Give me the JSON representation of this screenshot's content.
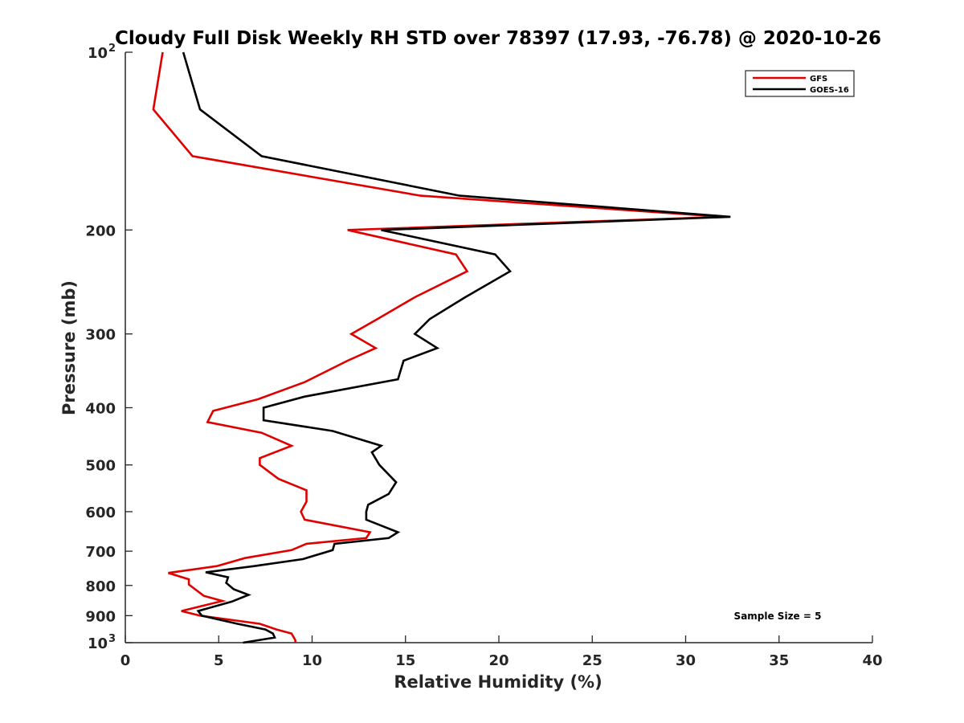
{
  "chart_data": {
    "type": "line",
    "title": "Cloudy Full Disk Weekly RH STD over 78397 (17.93, -76.78) @ 2020-10-26",
    "xlabel": "Relative Humidity (%)",
    "ylabel": "Pressure (mb)",
    "xlim": [
      0,
      40
    ],
    "ylim": [
      100,
      1000
    ],
    "y_scale": "log",
    "y_reversed": true,
    "x_ticks": [
      "0",
      "5",
      "10",
      "15",
      "20",
      "25",
      "30",
      "35",
      "40"
    ],
    "y_ticks": [
      {
        "value": 100,
        "base": "10",
        "exp": "2"
      },
      {
        "value": 200,
        "label": "200"
      },
      {
        "value": 300,
        "label": "300"
      },
      {
        "value": 400,
        "label": "400"
      },
      {
        "value": 500,
        "label": "500"
      },
      {
        "value": 600,
        "label": "600"
      },
      {
        "value": 700,
        "label": "700"
      },
      {
        "value": 800,
        "label": "800"
      },
      {
        "value": 900,
        "label": "900"
      },
      {
        "value": 1000,
        "base": "10",
        "exp": "3"
      }
    ],
    "legend_position": "top-right",
    "grid": false,
    "annotation": "Sample Size = 5",
    "series": [
      {
        "name": "GFS",
        "color": "#e00000",
        "points": [
          [
            2.0,
            100
          ],
          [
            1.5,
            125
          ],
          [
            3.6,
            150
          ],
          [
            15.8,
            175
          ],
          [
            32.0,
            190
          ],
          [
            11.9,
            200
          ],
          [
            17.7,
            220
          ],
          [
            18.3,
            235
          ],
          [
            15.5,
            260
          ],
          [
            13.5,
            283
          ],
          [
            12.1,
            300
          ],
          [
            13.4,
            317
          ],
          [
            11.9,
            333
          ],
          [
            9.6,
            362
          ],
          [
            7.1,
            387
          ],
          [
            4.7,
            405
          ],
          [
            4.4,
            423
          ],
          [
            7.3,
            441
          ],
          [
            8.9,
            464
          ],
          [
            7.2,
            487
          ],
          [
            7.2,
            500
          ],
          [
            8.2,
            528
          ],
          [
            9.7,
            552
          ],
          [
            9.7,
            577
          ],
          [
            9.4,
            600
          ],
          [
            9.6,
            619
          ],
          [
            13.1,
            650
          ],
          [
            12.9,
            665
          ],
          [
            9.7,
            680
          ],
          [
            8.9,
            697
          ],
          [
            6.4,
            719
          ],
          [
            4.9,
            742
          ],
          [
            2.3,
            762
          ],
          [
            3.4,
            781
          ],
          [
            3.4,
            797
          ],
          [
            4.2,
            833
          ],
          [
            5.2,
            850
          ],
          [
            3.0,
            884
          ],
          [
            4.0,
            900
          ],
          [
            7.2,
            929
          ],
          [
            8.1,
            950
          ],
          [
            8.9,
            965
          ],
          [
            9.1,
            990
          ],
          [
            9.1,
            1000
          ]
        ]
      },
      {
        "name": "GOES-16",
        "color": "#000000",
        "points": [
          [
            3.1,
            100
          ],
          [
            4.0,
            125
          ],
          [
            7.3,
            150
          ],
          [
            17.9,
            175
          ],
          [
            32.4,
            190
          ],
          [
            13.7,
            200
          ],
          [
            19.8,
            220
          ],
          [
            20.6,
            235
          ],
          [
            18.2,
            260
          ],
          [
            16.3,
            283
          ],
          [
            15.5,
            300
          ],
          [
            16.7,
            317
          ],
          [
            14.9,
            333
          ],
          [
            14.6,
            358
          ],
          [
            9.6,
            383
          ],
          [
            7.4,
            400
          ],
          [
            7.4,
            420
          ],
          [
            11.1,
            438
          ],
          [
            13.7,
            464
          ],
          [
            13.2,
            476
          ],
          [
            13.6,
            500
          ],
          [
            14.5,
            535
          ],
          [
            14.1,
            560
          ],
          [
            13.0,
            584
          ],
          [
            12.9,
            600
          ],
          [
            12.9,
            619
          ],
          [
            14.6,
            650
          ],
          [
            14.1,
            665
          ],
          [
            11.2,
            680
          ],
          [
            11.1,
            697
          ],
          [
            9.5,
            722
          ],
          [
            6.9,
            742
          ],
          [
            4.3,
            760
          ],
          [
            5.5,
            775
          ],
          [
            5.4,
            792
          ],
          [
            5.8,
            812
          ],
          [
            6.6,
            830
          ],
          [
            5.7,
            852
          ],
          [
            3.9,
            884
          ],
          [
            4.1,
            900
          ],
          [
            6.0,
            929
          ],
          [
            7.5,
            950
          ],
          [
            7.9,
            965
          ],
          [
            8.0,
            980
          ],
          [
            6.3,
            1000
          ]
        ]
      }
    ]
  }
}
